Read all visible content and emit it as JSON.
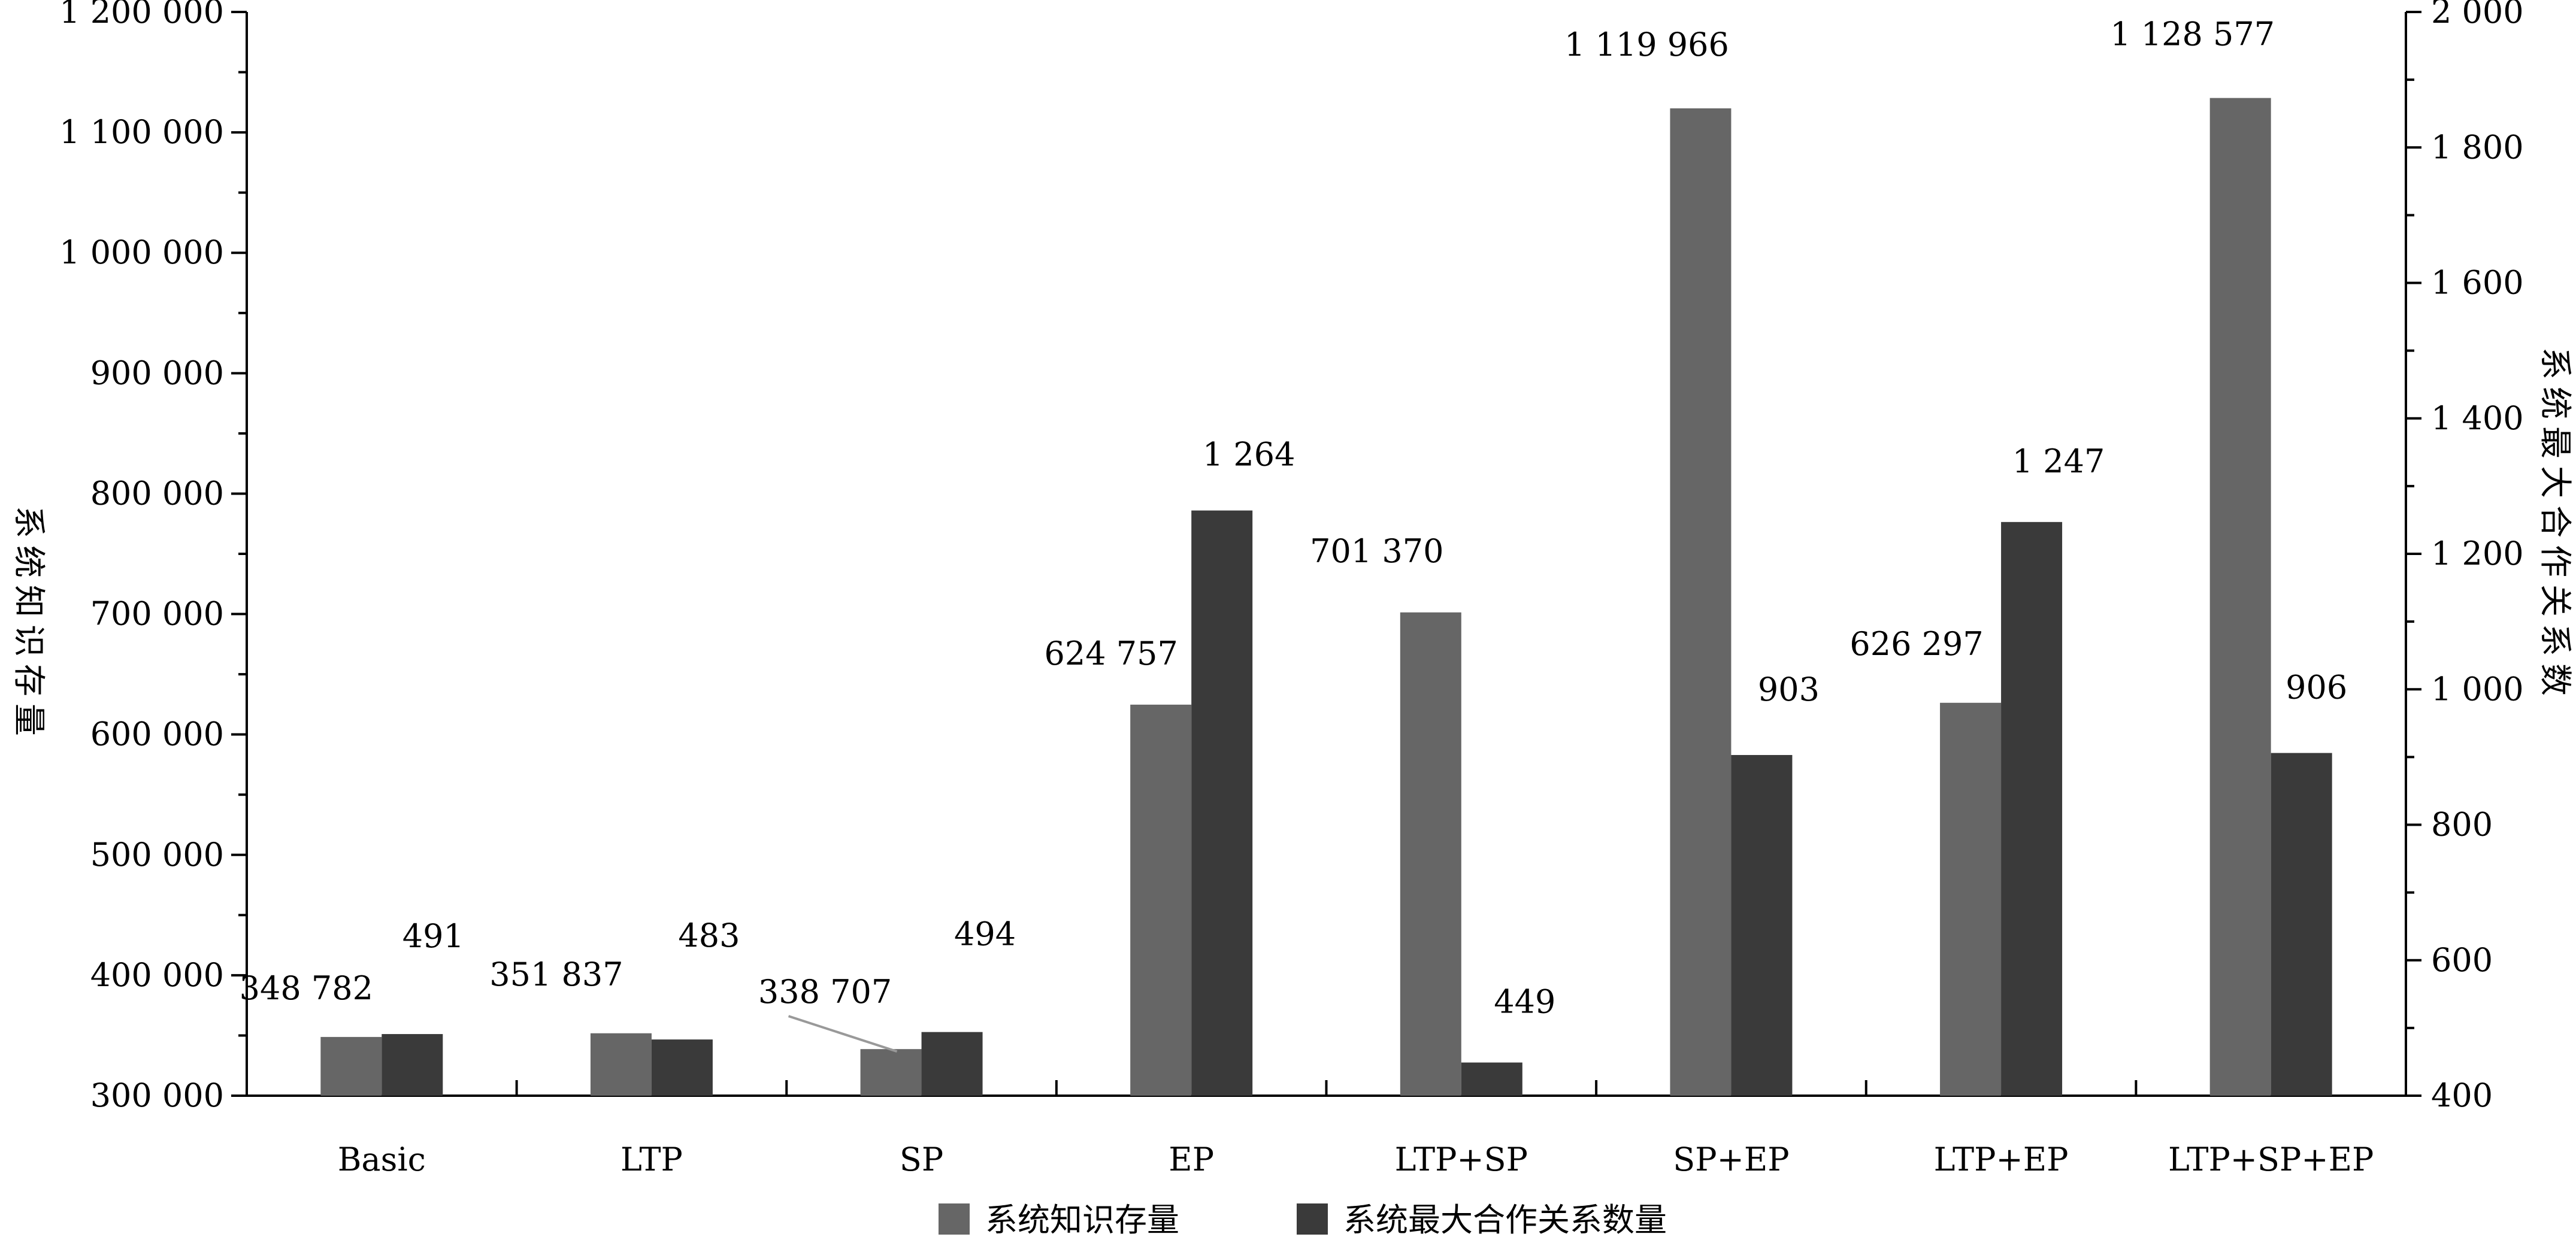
{
  "chart_data": {
    "type": "bar",
    "categories": [
      "Basic",
      "LTP",
      "SP",
      "EP",
      "LTP+SP",
      "SP+EP",
      "LTP+EP",
      "LTP+SP+EP"
    ],
    "series": [
      {
        "name": "系统知识存量",
        "axis": "left",
        "color": "#666666",
        "values": [
          348782,
          351837,
          338707,
          624757,
          701370,
          1119966,
          626297,
          1128577
        ],
        "labels": [
          "348 782",
          "351 837",
          "338 707",
          "624 757",
          "701 370",
          "1 119 966",
          "626 297",
          "1 128 577"
        ]
      },
      {
        "name": "系统最大合作关系数量",
        "axis": "right",
        "color": "#3a3a3a",
        "values": [
          491,
          483,
          494,
          1264,
          449,
          903,
          1247,
          906
        ],
        "labels": [
          "491",
          "483",
          "494",
          "1 264",
          "449",
          "903",
          "1 247",
          "906"
        ]
      }
    ],
    "ylim_left": [
      300000,
      1200000
    ],
    "ylim_right": [
      400,
      2000
    ],
    "left_ticks": [
      "300 000",
      "400 000",
      "500 000",
      "600 000",
      "700 000",
      "800 000",
      "900 000",
      "1 000 000",
      "1 100 000",
      "1 200 000"
    ],
    "right_ticks": [
      "400",
      "600",
      "800",
      "1 000",
      "1 200",
      "1 400",
      "1 600",
      "1 800",
      "2 000"
    ],
    "ylabel_left": "系统知识存量",
    "ylabel_right": "系统最大合作关系数",
    "legend_position": "bottom-center",
    "grid": false
  }
}
